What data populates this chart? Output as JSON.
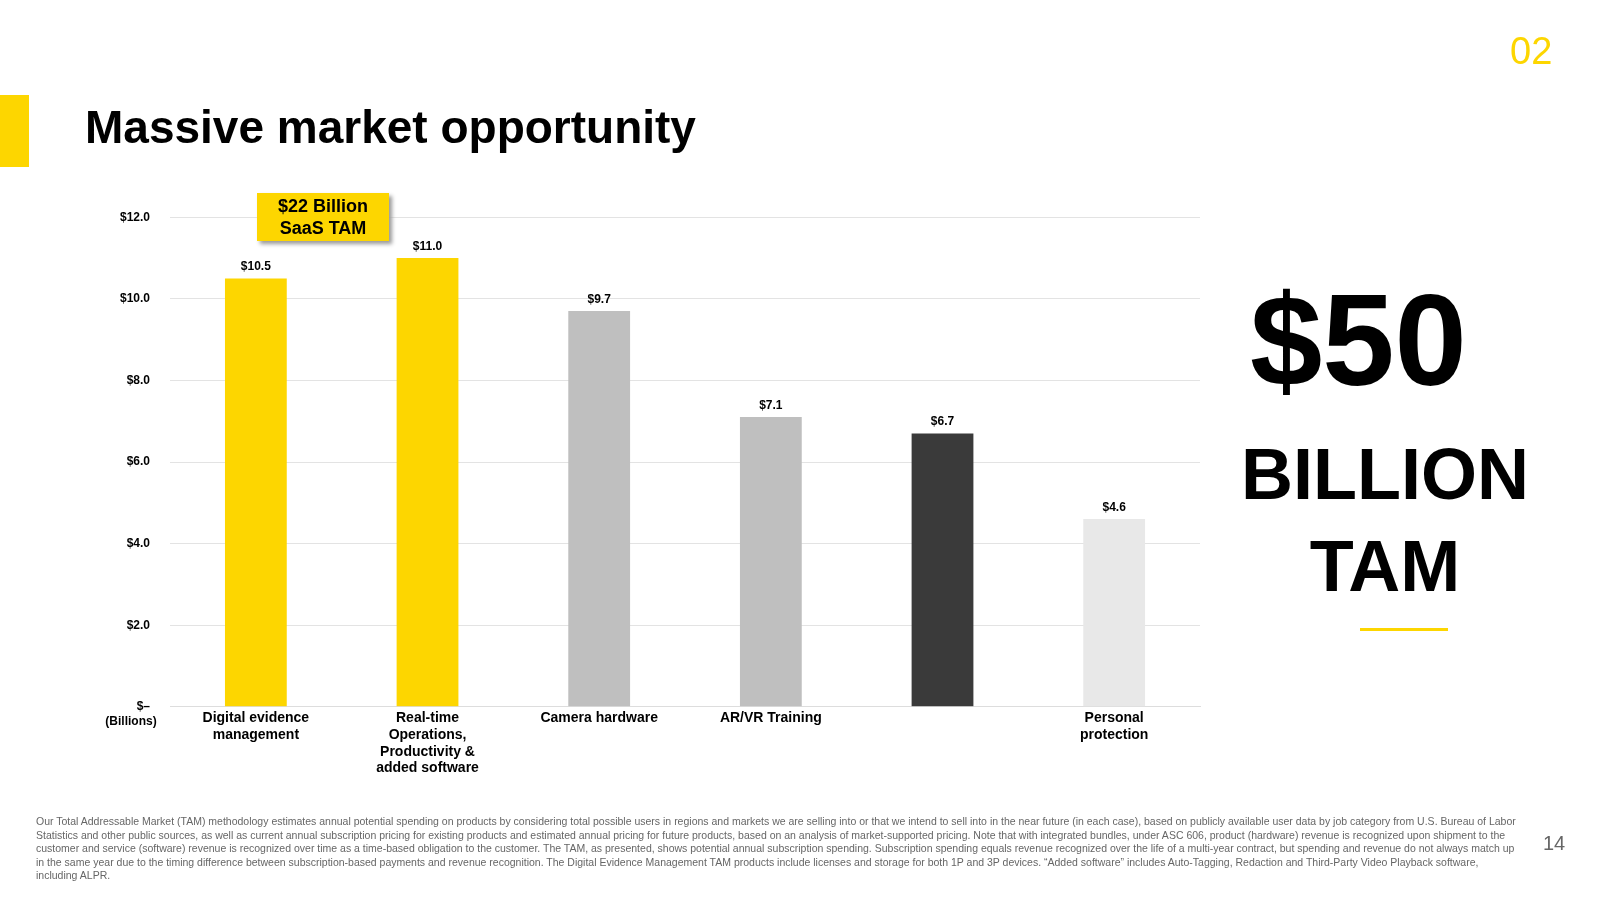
{
  "chart_data": {
    "type": "bar",
    "title": "Massive market opportunity",
    "ylabel": "(Billions)",
    "categories": [
      "Digital evidence management",
      "Real-time Operations, Productivity & added software",
      "Camera hardware",
      "AR/VR Training",
      null,
      "Personal protection"
    ],
    "values": [
      10.5,
      11.0,
      9.7,
      7.1,
      6.7,
      4.6
    ],
    "value_labels": [
      "$10.5",
      "$11.0",
      "$9.7",
      "$7.1",
      "$6.7",
      "$4.6"
    ],
    "colors": [
      "#fdd600",
      "#fdd600",
      "#bfbfbf",
      "#bfbfbf",
      "#3a3a3a",
      "#e8e8e8"
    ],
    "ylim": [
      0,
      12
    ],
    "yticks": [
      {
        "value": 0,
        "label": "$–"
      },
      {
        "value": 2,
        "label": "$2.0"
      },
      {
        "value": 4,
        "label": "$4.0"
      },
      {
        "value": 6,
        "label": "$6.0"
      },
      {
        "value": 8,
        "label": "$8.0"
      },
      {
        "value": 10,
        "label": "$10.0"
      },
      {
        "value": 12,
        "label": "$12.0"
      }
    ],
    "grid": "y",
    "legend": false,
    "annotations": [
      "$22 Billion SaaS TAM",
      "$50",
      "BILLION TAM",
      "02",
      "14",
      "Our Total Addressable Market (TAM) methodology estimates annual potential spending on products by considering total possible users in regions and markets we are selling into or that we intend to sell into in the near future (in each case), based on publicly available user data by job category from U.S. Bureau of Labor Statistics and other public sources, as well as current annual subscription pricing for existing products and estimated annual pricing for future products, based on an analysis of market-supported pricing. Note that with integrated bundles, under ASC 606, product (hardware) revenue is recognized upon shipment to the customer and service (software) revenue is recognized over time as a time-based obligation to the customer. The TAM, as presented, shows potential annual subscription spending. Subscription spending equals revenue recognized over the life of a multi-year contract, but spending and revenue do not always match up in the same year due to the timing difference between subscription-based payments and revenue recognition. The Digital Evidence Management TAM products include licenses and storage for both 1P and 3P devices. “Added software” includes Auto-Tagging, Redaction and Third-Party Video Playback software, including ALPR."
    ]
  }
}
